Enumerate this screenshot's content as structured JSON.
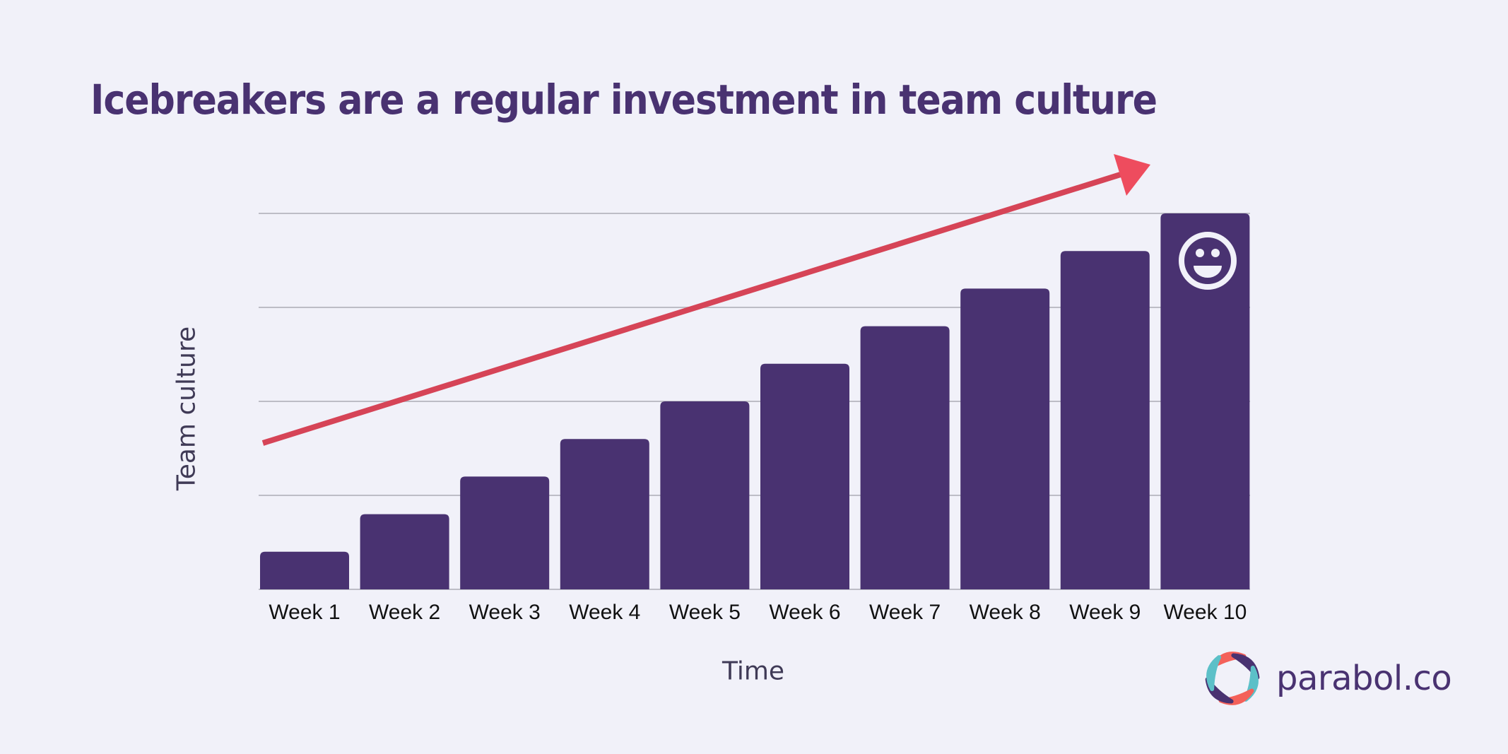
{
  "title": "Icebreakers are a regular investment in team culture",
  "brand": {
    "name": "parabol.co",
    "logo_icon": "parabol-logo-icon",
    "colors": {
      "coral": "#F4615A",
      "purple": "#493271",
      "teal": "#5CC0C8"
    }
  },
  "colors": {
    "background": "#F1F1F9",
    "bar": "#493271",
    "title": "#493271",
    "trend_line": "#D64457",
    "trend_arrowhead": "#EE4C5E",
    "gridline": "#BDBDC6",
    "axis_label": "#3F3A56"
  },
  "annotations": {
    "smiley_icon": "smiley-face-icon",
    "trend_arrow": "upward trend arrow"
  },
  "chart_data": {
    "type": "bar",
    "title": "Icebreakers are a regular investment in team culture",
    "xlabel": "Time",
    "ylabel": "Team culture",
    "categories": [
      "Week 1",
      "Week 2",
      "Week 3",
      "Week 4",
      "Week 5",
      "Week 6",
      "Week 7",
      "Week 8",
      "Week 9",
      "Week 10"
    ],
    "values": [
      1,
      2,
      3,
      4,
      5,
      6,
      7,
      8,
      9,
      10
    ],
    "ylim": [
      0,
      10
    ],
    "yticks": [
      0,
      2.5,
      5,
      7.5,
      10
    ],
    "ytick_labels_visible": false,
    "grid": true,
    "legend": null,
    "annotations": [
      {
        "type": "arrow",
        "description": "Red upward trend arrow across bars",
        "from": {
          "x": "Week 1",
          "y": 3.9
        },
        "to": {
          "x": "Week 10",
          "y": 11.3
        }
      },
      {
        "type": "icon",
        "description": "Smiley face on Week 10 bar",
        "x": "Week 10"
      }
    ]
  }
}
